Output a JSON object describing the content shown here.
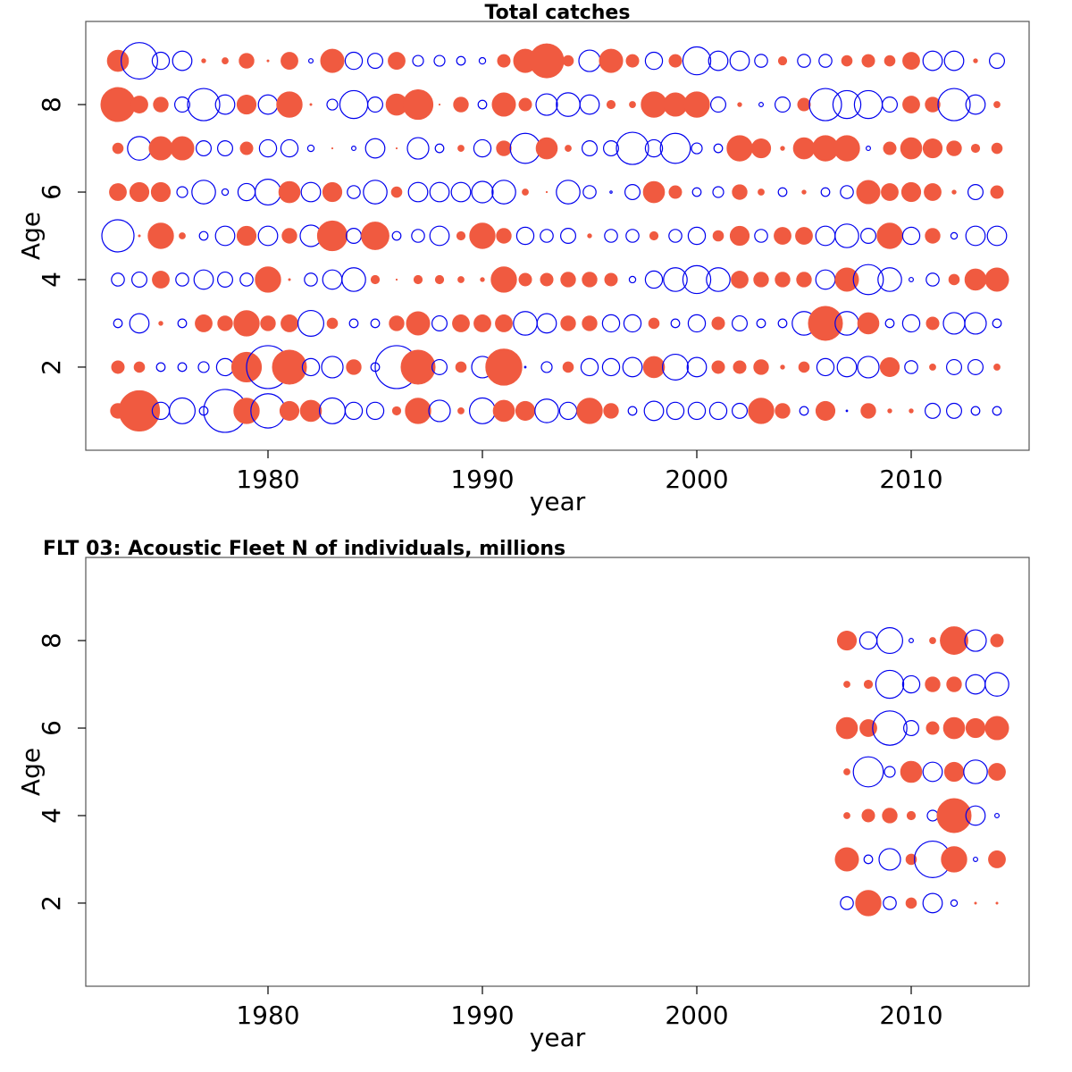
{
  "colors": {
    "positive": "#f05a40",
    "negative": "#0000ee"
  },
  "chart_data": [
    {
      "type": "scatter",
      "subtype": "bubble",
      "title": "Total catches",
      "xlabel": "year",
      "ylabel": "Age",
      "xlim": [
        1971.5,
        2015.5
      ],
      "ylim": [
        0.1,
        9.9
      ],
      "xticks": [
        1980,
        1990,
        2000,
        2010
      ],
      "yticks": [
        2,
        4,
        6,
        8
      ],
      "note": "bubble value = residual; positive filled red, negative open blue; magnitude ~ radius",
      "ages": [
        1,
        2,
        3,
        4,
        5,
        6,
        7,
        8,
        9
      ],
      "years": [
        1973,
        1974,
        1975,
        1976,
        1977,
        1978,
        1979,
        1980,
        1981,
        1982,
        1983,
        1984,
        1985,
        1986,
        1987,
        1988,
        1989,
        1990,
        1991,
        1992,
        1993,
        1994,
        1995,
        1996,
        1997,
        1998,
        1999,
        2000,
        2001,
        2002,
        2003,
        2004,
        2005,
        2006,
        2007,
        2008,
        2009,
        2010,
        2011,
        2012,
        2013,
        2014
      ],
      "values": [
        [
          0.35,
          0.95,
          -0.4,
          -0.6,
          -0.2,
          -1.0,
          0.6,
          -0.8,
          0.45,
          0.5,
          -0.6,
          -0.4,
          -0.4,
          0.2,
          0.6,
          -0.5,
          0.15,
          -0.6,
          0.5,
          0.45,
          -0.55,
          -0.4,
          0.6,
          0.35,
          -0.2,
          -0.45,
          -0.4,
          -0.4,
          -0.4,
          -0.35,
          0.6,
          0.35,
          -0.2,
          0.45,
          -0.02,
          0.35,
          0.1,
          0.1,
          -0.35,
          -0.35,
          -0.2,
          -0.2
        ],
        [
          0.3,
          0.25,
          -0.2,
          -0.2,
          -0.25,
          -0.4,
          0.7,
          -1.0,
          0.8,
          -0.4,
          -0.5,
          0.35,
          -0.2,
          -1.0,
          0.8,
          -0.35,
          0.25,
          -0.5,
          0.85,
          -0.02,
          -0.25,
          0.25,
          -0.4,
          -0.4,
          -0.45,
          0.5,
          -0.6,
          -0.45,
          0.3,
          0.3,
          0.35,
          0.1,
          0.25,
          -0.4,
          -0.45,
          -0.5,
          0.45,
          -0.3,
          0.15,
          -0.35,
          -0.35,
          0.15
        ],
        [
          -0.2,
          -0.45,
          0.1,
          -0.2,
          0.4,
          0.35,
          0.6,
          0.35,
          0.4,
          -0.6,
          0.25,
          -0.2,
          -0.2,
          0.35,
          0.55,
          -0.35,
          0.4,
          0.4,
          0.4,
          -0.55,
          -0.45,
          0.35,
          0.35,
          -0.4,
          -0.4,
          0.25,
          -0.2,
          -0.4,
          0.3,
          -0.35,
          -0.2,
          -0.2,
          -0.55,
          0.8,
          -0.55,
          0.5,
          -0.2,
          -0.4,
          0.3,
          -0.5,
          -0.5,
          -0.2
        ],
        [
          -0.3,
          -0.35,
          0.4,
          -0.3,
          -0.45,
          -0.35,
          -0.3,
          0.6,
          0.05,
          -0.3,
          -0.45,
          -0.55,
          0.2,
          0.02,
          0.2,
          0.2,
          0.15,
          0.1,
          0.6,
          0.3,
          0.3,
          0.35,
          0.35,
          0.3,
          -0.15,
          -0.4,
          -0.55,
          -0.65,
          -0.55,
          0.4,
          0.35,
          0.35,
          0.35,
          -0.45,
          0.55,
          -0.7,
          -0.55,
          -0.1,
          -0.3,
          0.25,
          0.5,
          0.55
        ],
        [
          -0.75,
          0.05,
          0.6,
          0.15,
          -0.2,
          -0.45,
          0.45,
          -0.45,
          0.35,
          -0.5,
          0.7,
          -0.35,
          0.65,
          -0.2,
          -0.3,
          -0.45,
          0.2,
          0.6,
          0.35,
          -0.4,
          -0.3,
          -0.35,
          0.1,
          -0.3,
          -0.3,
          0.2,
          -0.3,
          -0.4,
          0.25,
          0.45,
          -0.3,
          0.4,
          0.4,
          -0.45,
          -0.55,
          -0.35,
          0.6,
          -0.4,
          0.35,
          -0.15,
          -0.45,
          -0.45
        ],
        [
          0.4,
          0.45,
          0.45,
          -0.25,
          -0.55,
          -0.15,
          -0.4,
          -0.6,
          0.5,
          -0.45,
          0.45,
          -0.3,
          -0.55,
          0.25,
          -0.45,
          -0.45,
          -0.45,
          -0.5,
          -0.55,
          0.15,
          0.02,
          -0.55,
          -0.3,
          -0.05,
          -0.35,
          0.5,
          0.3,
          -0.2,
          -0.25,
          0.35,
          0.15,
          -0.2,
          0.1,
          -0.2,
          -0.3,
          0.55,
          0.4,
          0.45,
          0.4,
          0.1,
          -0.35,
          0.3
        ],
        [
          0.25,
          -0.55,
          0.55,
          0.55,
          -0.35,
          -0.35,
          0.3,
          -0.4,
          -0.4,
          -0.15,
          0.02,
          -0.1,
          -0.45,
          0.02,
          -0.5,
          -0.2,
          0.15,
          -0.4,
          0.35,
          -0.7,
          0.5,
          0.15,
          -0.35,
          -0.35,
          -0.75,
          -0.4,
          -0.7,
          -0.25,
          -0.2,
          0.6,
          0.45,
          0.1,
          0.5,
          0.6,
          0.6,
          -0.1,
          0.3,
          0.5,
          0.45,
          0.35,
          0.2,
          0.25
        ],
        [
          0.8,
          0.4,
          0.35,
          -0.35,
          -0.75,
          -0.45,
          0.45,
          -0.45,
          0.6,
          0.05,
          -0.25,
          -0.65,
          -0.35,
          0.5,
          0.7,
          0.02,
          0.35,
          -0.2,
          0.55,
          0.3,
          -0.5,
          -0.55,
          -0.45,
          0.2,
          0.15,
          0.6,
          0.55,
          0.6,
          -0.35,
          0.1,
          -0.1,
          -0.35,
          0.3,
          -0.75,
          -0.65,
          -0.65,
          -0.35,
          0.4,
          0.35,
          -0.75,
          -0.45,
          0.15
        ],
        [
          0.5,
          -0.85,
          -0.4,
          -0.45,
          0.1,
          0.15,
          0.35,
          0.05,
          0.4,
          -0.1,
          0.55,
          -0.4,
          -0.35,
          0.4,
          -0.25,
          -0.25,
          -0.2,
          -0.15,
          0.3,
          0.55,
          0.8,
          0.25,
          -0.5,
          0.55,
          0.3,
          -0.4,
          0.3,
          -0.65,
          -0.45,
          -0.45,
          -0.3,
          0.2,
          -0.3,
          -0.3,
          0.25,
          0.3,
          0.25,
          0.4,
          -0.45,
          -0.45,
          0.1,
          -0.35
        ]
      ]
    },
    {
      "type": "scatter",
      "subtype": "bubble",
      "title": "FLT 03: Acoustic Fleet   N of individuals, millions",
      "xlabel": "year",
      "ylabel": "Age",
      "xlim": [
        1971.5,
        2015.5
      ],
      "ylim": [
        0.1,
        9.9
      ],
      "xticks": [
        1980,
        1990,
        2000,
        2010
      ],
      "yticks": [
        2,
        4,
        6,
        8
      ],
      "ages": [
        2,
        3,
        4,
        5,
        6,
        7,
        8
      ],
      "years": [
        2007,
        2008,
        2009,
        2010,
        2011,
        2012,
        2013,
        2014
      ],
      "values": [
        [
          -0.3,
          0.6,
          -0.3,
          0.25,
          -0.45,
          -0.15,
          0.05,
          0.05
        ],
        [
          0.55,
          -0.2,
          -0.5,
          0.25,
          -0.85,
          0.6,
          -0.1,
          0.4
        ],
        [
          0.15,
          0.3,
          0.35,
          0.2,
          -0.25,
          0.8,
          -0.45,
          -0.1
        ],
        [
          0.15,
          -0.7,
          -0.25,
          0.5,
          -0.45,
          0.45,
          -0.55,
          0.4
        ],
        [
          0.5,
          0.4,
          -0.8,
          -0.35,
          0.3,
          0.5,
          0.45,
          0.55
        ],
        [
          0.15,
          0.2,
          -0.65,
          -0.4,
          0.35,
          0.35,
          -0.45,
          -0.55
        ],
        [
          0.45,
          -0.4,
          -0.6,
          -0.1,
          0.15,
          0.65,
          -0.5,
          0.3
        ]
      ]
    }
  ]
}
